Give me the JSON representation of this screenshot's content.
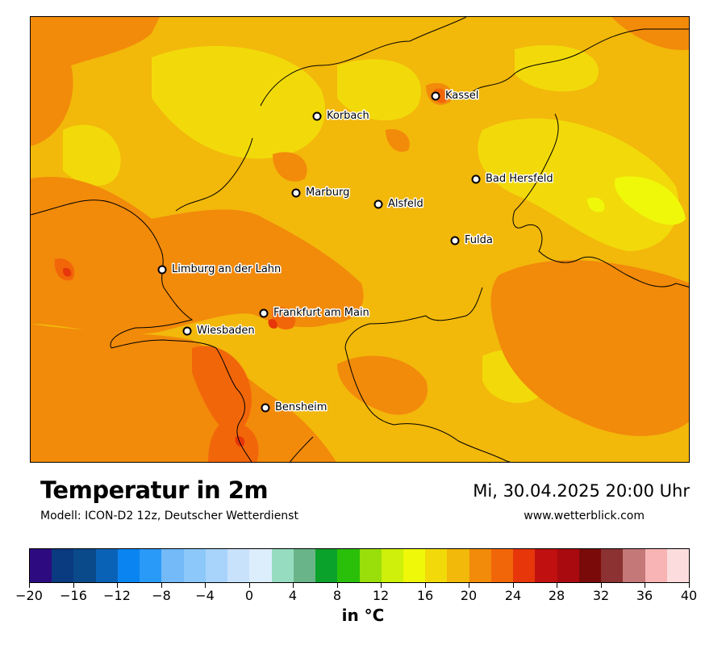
{
  "title": "Temperatur in 2m",
  "subtitle": "Modell: ICON-D2 12z, Deutscher Wetterdienst",
  "datetime": "Mi, 30.04.2025 20:00 Uhr",
  "website": "www.wetterblick.com",
  "cities": [
    {
      "name": "Kassel"
    },
    {
      "name": "Korbach"
    },
    {
      "name": "Bad Hersfeld"
    },
    {
      "name": "Marburg"
    },
    {
      "name": "Alsfeld"
    },
    {
      "name": "Fulda"
    },
    {
      "name": "Limburg an der Lahn"
    },
    {
      "name": "Frankfurt am Main"
    },
    {
      "name": "Wiesbaden"
    },
    {
      "name": "Bensheim"
    }
  ],
  "legend": {
    "unit": "in °C",
    "ticks": [
      "−20",
      "−16",
      "−12",
      "−8",
      "−4",
      "0",
      "4",
      "8",
      "12",
      "16",
      "20",
      "24",
      "28",
      "32",
      "36",
      "40"
    ],
    "colors": [
      "#2e0a80",
      "#0a3a80",
      "#0a4a8a",
      "#0a62b6",
      "#0a84f0",
      "#2a9af8",
      "#74baf8",
      "#8cc8fa",
      "#a8d4fc",
      "#c8e2fc",
      "#dceefc",
      "#96dcc0",
      "#6ab48a",
      "#0aa22a",
      "#2ac00a",
      "#9ade0a",
      "#cef00a",
      "#f0f80a",
      "#f2da0a",
      "#f2b80a",
      "#f28a0a",
      "#f2660a",
      "#e6360a",
      "#c01010",
      "#a80a10",
      "#7a0a0a",
      "#8c3232",
      "#c47878",
      "#f8b4b4",
      "#fcdcdc"
    ]
  },
  "map_colors": {
    "base": "#f2b80a",
    "warm": "#f28a0a",
    "warmer": "#f2660a",
    "hot": "#e6360a",
    "cool": "#f2da0a",
    "coolest": "#f0f80a"
  }
}
